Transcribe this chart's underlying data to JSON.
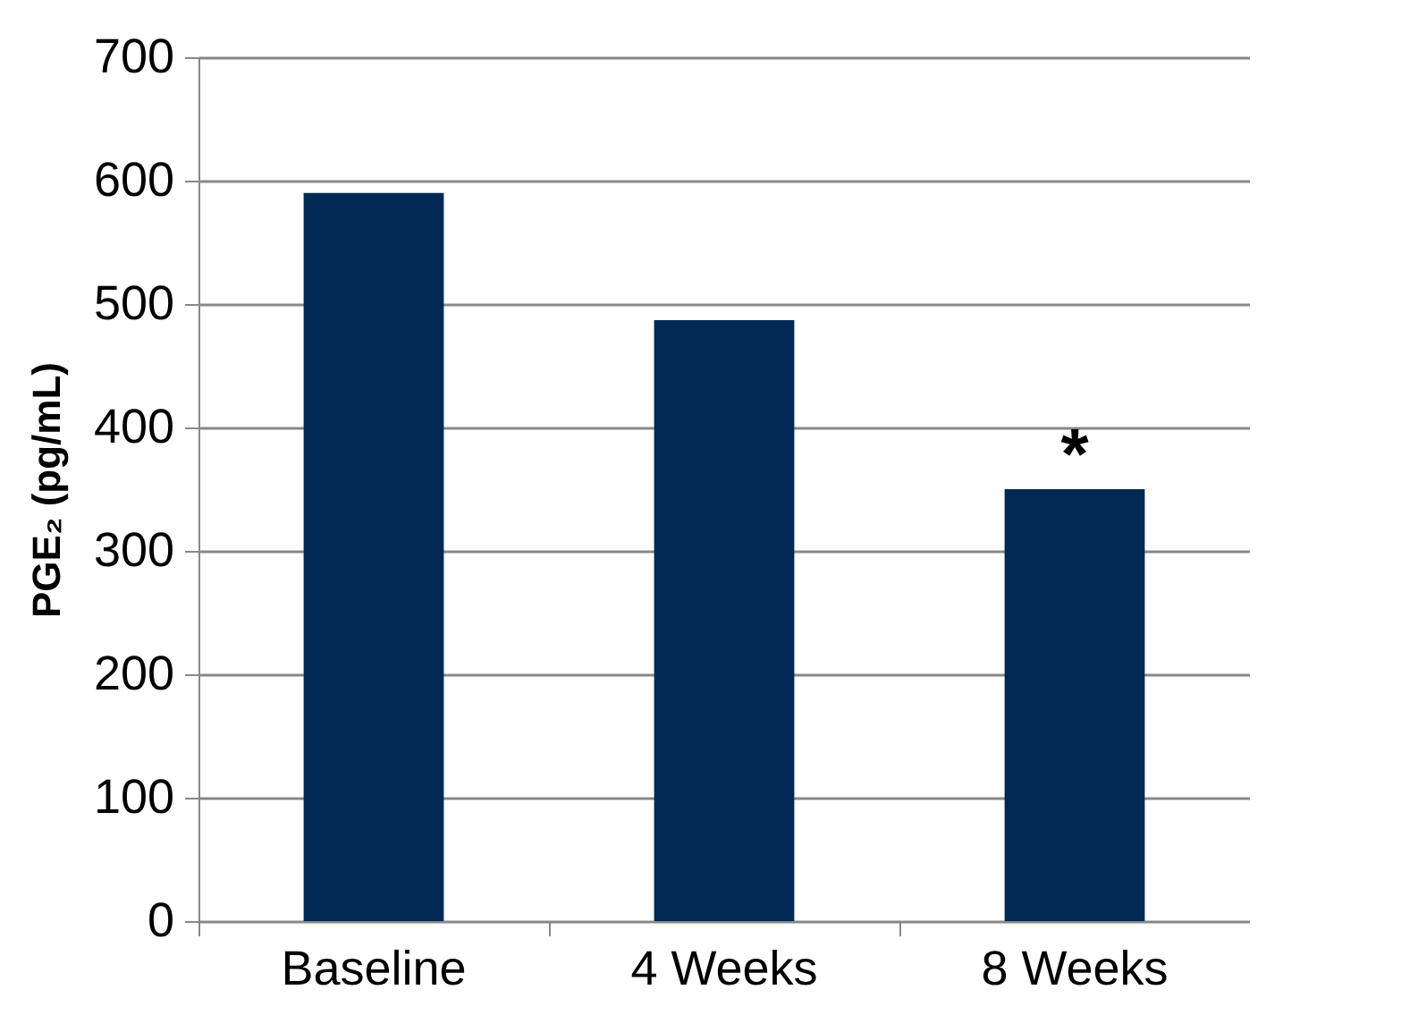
{
  "chart_data": {
    "type": "bar",
    "ylabel": "PGE₂ (pg/mL)",
    "categories": [
      "Baseline",
      "4 Weeks",
      "8 Weeks"
    ],
    "values": [
      590,
      487,
      350
    ],
    "color": "#002a54",
    "ylim": [
      0,
      700
    ],
    "yticks": [
      0,
      100,
      200,
      300,
      400,
      500,
      600,
      700
    ],
    "grid": "y",
    "annotations": [
      {
        "text": "*",
        "x": "8 Weeks",
        "y": 350
      }
    ]
  }
}
